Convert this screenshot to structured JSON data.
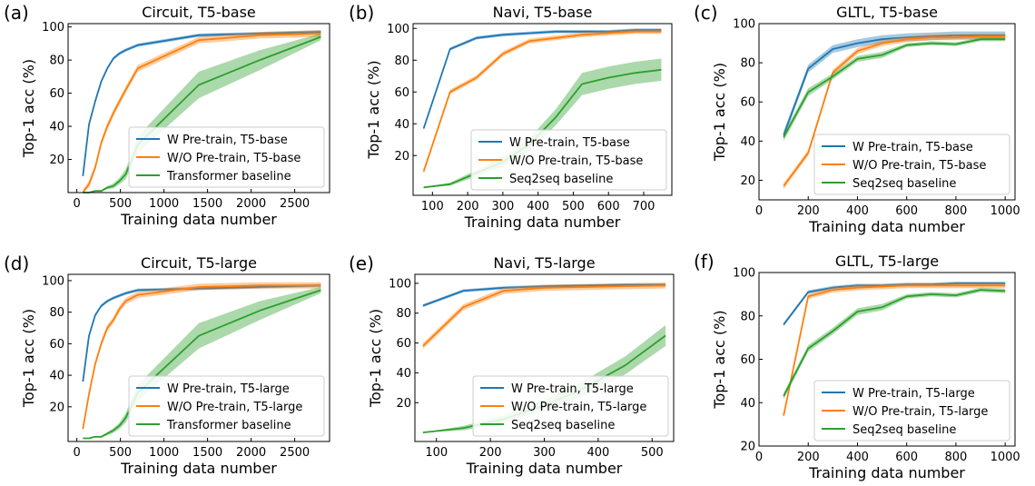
{
  "colors": {
    "w": "#1f77b4",
    "wo": "#ff7f0e",
    "base": "#2ca02c"
  },
  "chart_data": [
    {
      "type": "line",
      "letter": "(a)",
      "title": "Circuit, T5-base",
      "xlabel": "Training data number",
      "ylabel": "Top-1 acc (%)",
      "xlim": [
        -100,
        2900
      ],
      "ylim": [
        0,
        102
      ],
      "xticks": [
        0,
        500,
        1000,
        1500,
        2000,
        2500
      ],
      "yticks": [
        20,
        40,
        60,
        80,
        100
      ],
      "grid": false,
      "legend_position": "bottom-right",
      "series": [
        {
          "name": "W Pre-train, T5-base",
          "color": "w",
          "band": 1,
          "x": [
            70,
            140,
            210,
            280,
            350,
            420,
            490,
            560,
            700,
            1400,
            2100,
            2800
          ],
          "y": [
            10,
            41,
            55,
            67,
            75,
            81,
            84,
            86,
            89,
            95,
            96,
            97
          ]
        },
        {
          "name": "W/O Pre-train, T5-base",
          "color": "wo",
          "band": 2,
          "x": [
            70,
            140,
            210,
            280,
            350,
            420,
            490,
            560,
            700,
            1400,
            2100,
            2800
          ],
          "y": [
            0,
            5,
            15,
            30,
            40,
            48,
            55,
            62,
            75,
            92,
            95,
            96
          ]
        },
        {
          "name": "Transformer baseline",
          "color": "base",
          "x": [
            70,
            140,
            210,
            280,
            350,
            420,
            490,
            560,
            700,
            1400,
            2100,
            2800
          ],
          "y": [
            0,
            0,
            1,
            1,
            3,
            4,
            7,
            11,
            29,
            65,
            80,
            94
          ],
          "band_w": [
            0,
            0,
            0,
            0.5,
            1,
            1.5,
            2,
            3,
            5,
            8,
            6,
            2
          ]
        }
      ]
    },
    {
      "type": "line",
      "letter": "(b)",
      "title": "Navi, T5-base",
      "xlabel": "Training data number",
      "ylabel": "Top-1 acc (%)",
      "xlim": [
        45,
        780
      ],
      "ylim": [
        -5,
        103
      ],
      "xticks": [
        100,
        200,
        300,
        400,
        500,
        600,
        700
      ],
      "yticks": [
        20,
        40,
        60,
        80,
        100
      ],
      "grid": false,
      "legend_position": "bottom-right",
      "series": [
        {
          "name": "W Pre-train, T5-base",
          "color": "w",
          "band": 1,
          "x": [
            75,
            150,
            225,
            300,
            375,
            450,
            525,
            600,
            675,
            750
          ],
          "y": [
            37,
            87,
            94,
            96,
            97,
            98,
            98,
            98,
            99,
            99
          ]
        },
        {
          "name": "W/O Pre-train, T5-base",
          "color": "wo",
          "band": 1.5,
          "x": [
            75,
            150,
            225,
            300,
            375,
            450,
            525,
            600,
            675,
            750
          ],
          "y": [
            10,
            60,
            69,
            84,
            92,
            94,
            96,
            97,
            98,
            98
          ]
        },
        {
          "name": "Seq2seq baseline",
          "color": "base",
          "x": [
            75,
            150,
            225,
            300,
            375,
            450,
            525,
            600,
            675,
            750
          ],
          "y": [
            0,
            2,
            9,
            16,
            27,
            44,
            65,
            69,
            72,
            74
          ],
          "band_w": [
            0,
            1,
            2,
            3,
            4,
            5,
            7,
            7,
            7,
            7
          ]
        }
      ]
    },
    {
      "type": "line",
      "letter": "(c)",
      "title": "GLTL, T5-base",
      "xlabel": "Training data number",
      "ylabel": "Top-1 acc (%)",
      "xlim": [
        0,
        1040
      ],
      "ylim": [
        10,
        100
      ],
      "xticks": [
        0,
        200,
        400,
        600,
        800,
        1000
      ],
      "yticks": [
        20,
        40,
        60,
        80,
        100
      ],
      "grid": false,
      "legend_position": "bottom-right",
      "series": [
        {
          "name": "W Pre-train, T5-base",
          "color": "w",
          "band": 2,
          "x": [
            100,
            200,
            300,
            400,
            500,
            600,
            700,
            800,
            900,
            1000
          ],
          "y": [
            43,
            77,
            87,
            90,
            92,
            93,
            93.5,
            94,
            94,
            94
          ]
        },
        {
          "name": "W/O Pre-train, T5-base",
          "color": "wo",
          "band": 1.5,
          "x": [
            100,
            200,
            300,
            400,
            500,
            600,
            700,
            800,
            900,
            1000
          ],
          "y": [
            17,
            34,
            75,
            86,
            90,
            92,
            93,
            93,
            93.5,
            93.5
          ]
        },
        {
          "name": "Seq2seq baseline",
          "color": "base",
          "x": [
            100,
            200,
            300,
            400,
            500,
            600,
            700,
            800,
            900,
            1000
          ],
          "y": [
            42,
            65,
            73,
            82,
            84,
            89,
            90,
            89.5,
            92,
            92
          ],
          "band_w": [
            2,
            2,
            1.5,
            1.5,
            1.5,
            1,
            1,
            1,
            1,
            1
          ]
        }
      ]
    },
    {
      "type": "line",
      "letter": "(d)",
      "title": "Circuit, T5-large",
      "xlabel": "Training data number",
      "ylabel": "Top-1 acc (%)",
      "xlim": [
        -100,
        2900
      ],
      "ylim": [
        -2,
        104
      ],
      "xticks": [
        0,
        500,
        1000,
        1500,
        2000,
        2500
      ],
      "yticks": [
        20,
        40,
        60,
        80,
        100
      ],
      "grid": false,
      "legend_position": "bottom-right",
      "series": [
        {
          "name": "W Pre-train, T5-large",
          "color": "w",
          "band": 1,
          "x": [
            70,
            140,
            210,
            280,
            350,
            420,
            490,
            560,
            700,
            1400,
            2100,
            2800
          ],
          "y": [
            36,
            65,
            78,
            84,
            87,
            89,
            90.5,
            92,
            94,
            95,
            96,
            97
          ]
        },
        {
          "name": "W/O Pre-train, T5-large",
          "color": "wo",
          "band": 2,
          "x": [
            70,
            140,
            210,
            280,
            350,
            420,
            490,
            560,
            700,
            1400,
            2100,
            2800
          ],
          "y": [
            6,
            28,
            47,
            60,
            70,
            75,
            82,
            87,
            91,
            96,
            97,
            97
          ]
        },
        {
          "name": "Transformer baseline",
          "color": "base",
          "x": [
            70,
            140,
            210,
            280,
            350,
            420,
            490,
            560,
            700,
            1400,
            2100,
            2800
          ],
          "y": [
            0,
            0,
            1,
            1,
            3,
            5,
            8,
            13,
            29,
            65,
            81,
            94
          ],
          "band_w": [
            0,
            0,
            0,
            0.5,
            1,
            1.5,
            2,
            3,
            5,
            8,
            6,
            2
          ]
        }
      ]
    },
    {
      "type": "line",
      "letter": "(e)",
      "title": "Navi, T5-large",
      "xlabel": "Training data number",
      "ylabel": "Top-1 acc (%)",
      "xlim": [
        60,
        540
      ],
      "ylim": [
        -6,
        106
      ],
      "xticks": [
        100,
        200,
        300,
        400,
        500
      ],
      "yticks": [
        20,
        40,
        60,
        80,
        100
      ],
      "grid": false,
      "legend_position": "bottom-right",
      "series": [
        {
          "name": "W Pre-train, T5-large",
          "color": "w",
          "band": 1,
          "x": [
            75,
            150,
            225,
            300,
            375,
            450,
            525
          ],
          "y": [
            85,
            95,
            97,
            98,
            98.5,
            99,
            99
          ]
        },
        {
          "name": "W/O Pre-train, T5-large",
          "color": "wo",
          "band": 2,
          "x": [
            75,
            150,
            225,
            300,
            375,
            450,
            525
          ],
          "y": [
            58,
            84,
            95,
            97,
            97.5,
            98,
            98.5
          ]
        },
        {
          "name": "Seq2seq baseline",
          "color": "base",
          "x": [
            75,
            150,
            225,
            300,
            375,
            450,
            525
          ],
          "y": [
            0,
            3,
            9,
            18,
            30,
            45,
            65
          ],
          "band_w": [
            0,
            1.5,
            2.5,
            4,
            5,
            6,
            7
          ]
        }
      ]
    },
    {
      "type": "line",
      "letter": "(f)",
      "title": "GLTL, T5-large",
      "xlabel": "Training data number",
      "ylabel": "Top-1 acc (%)",
      "xlim": [
        0,
        1040
      ],
      "ylim": [
        20,
        100
      ],
      "xticks": [
        0,
        200,
        400,
        600,
        800,
        1000
      ],
      "yticks": [
        20,
        40,
        60,
        80,
        100
      ],
      "grid": false,
      "legend_position": "bottom-right",
      "series": [
        {
          "name": "W Pre-train, T5-large",
          "color": "w",
          "band": 0.8,
          "x": [
            100,
            200,
            300,
            400,
            500,
            600,
            700,
            800,
            900,
            1000
          ],
          "y": [
            76,
            91,
            93,
            94,
            94,
            94.5,
            94.5,
            95,
            95,
            95
          ]
        },
        {
          "name": "W/O Pre-train, T5-large",
          "color": "wo",
          "band": 1.2,
          "x": [
            100,
            200,
            300,
            400,
            500,
            600,
            700,
            800,
            900,
            1000
          ],
          "y": [
            34,
            89,
            92,
            93,
            93.5,
            94,
            94,
            94,
            94,
            94
          ]
        },
        {
          "name": "Seq2seq baseline",
          "color": "base",
          "x": [
            100,
            200,
            300,
            400,
            500,
            600,
            700,
            800,
            900,
            1000
          ],
          "y": [
            43,
            65,
            73,
            82,
            84,
            89,
            90,
            89.5,
            92,
            91.5
          ],
          "band_w": [
            1.5,
            1.5,
            1.5,
            1.5,
            1.5,
            1,
            1,
            1,
            1,
            1
          ]
        }
      ]
    }
  ]
}
